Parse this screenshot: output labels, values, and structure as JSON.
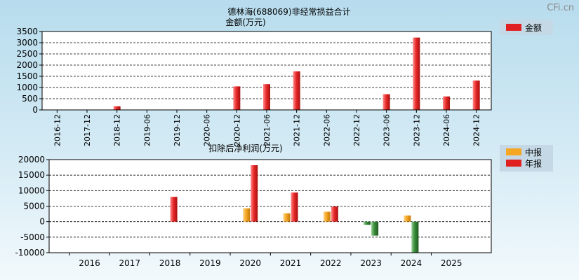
{
  "watermark": "CFi.cn",
  "title": "德林海(688069)非经常损益合计",
  "chart_data": [
    {
      "type": "bar",
      "title": "金额(万元)",
      "categories": [
        "2016-12",
        "2017-12",
        "2018-12",
        "2019-06",
        "2019-12",
        "2020-06",
        "2020-12",
        "2021-06",
        "2021-12",
        "2022-06",
        "2022-12",
        "2023-06",
        "2023-12",
        "2024-06",
        "2024-12"
      ],
      "series": [
        {
          "name": "金额",
          "values": [
            0,
            0,
            160,
            0,
            0,
            0,
            1050,
            1150,
            1720,
            0,
            0,
            700,
            3230,
            600,
            1310
          ]
        }
      ],
      "ylim": [
        0,
        3500
      ],
      "yticks": [
        "0",
        "500",
        "1000",
        "1500",
        "2000",
        "2500",
        "3000",
        "3500"
      ],
      "grid": true,
      "legend": "top-right",
      "colors": {
        "金额": "#e02020"
      }
    },
    {
      "type": "bar",
      "title": "扣除后净利润(万元)",
      "categories": [
        "2016",
        "2017",
        "2018",
        "2019",
        "2020",
        "2021",
        "2022",
        "2023",
        "2024",
        "2025"
      ],
      "series": [
        {
          "name": "中报",
          "values": [
            null,
            null,
            null,
            null,
            4300,
            2700,
            3200,
            -1000,
            2000,
            null
          ]
        },
        {
          "name": "年报",
          "values": [
            null,
            null,
            8000,
            null,
            18200,
            9400,
            4900,
            -4500,
            -10000,
            null
          ]
        }
      ],
      "ylim": [
        -10000,
        20000
      ],
      "yticks": [
        "-10000",
        "-5000",
        "0",
        "5000",
        "10000",
        "15000",
        "20000"
      ],
      "grid": true,
      "legend": "top-right",
      "colors": {
        "中报": "#f5a623",
        "年报": "#e02020",
        "negative": "#3a8a3a"
      }
    }
  ]
}
